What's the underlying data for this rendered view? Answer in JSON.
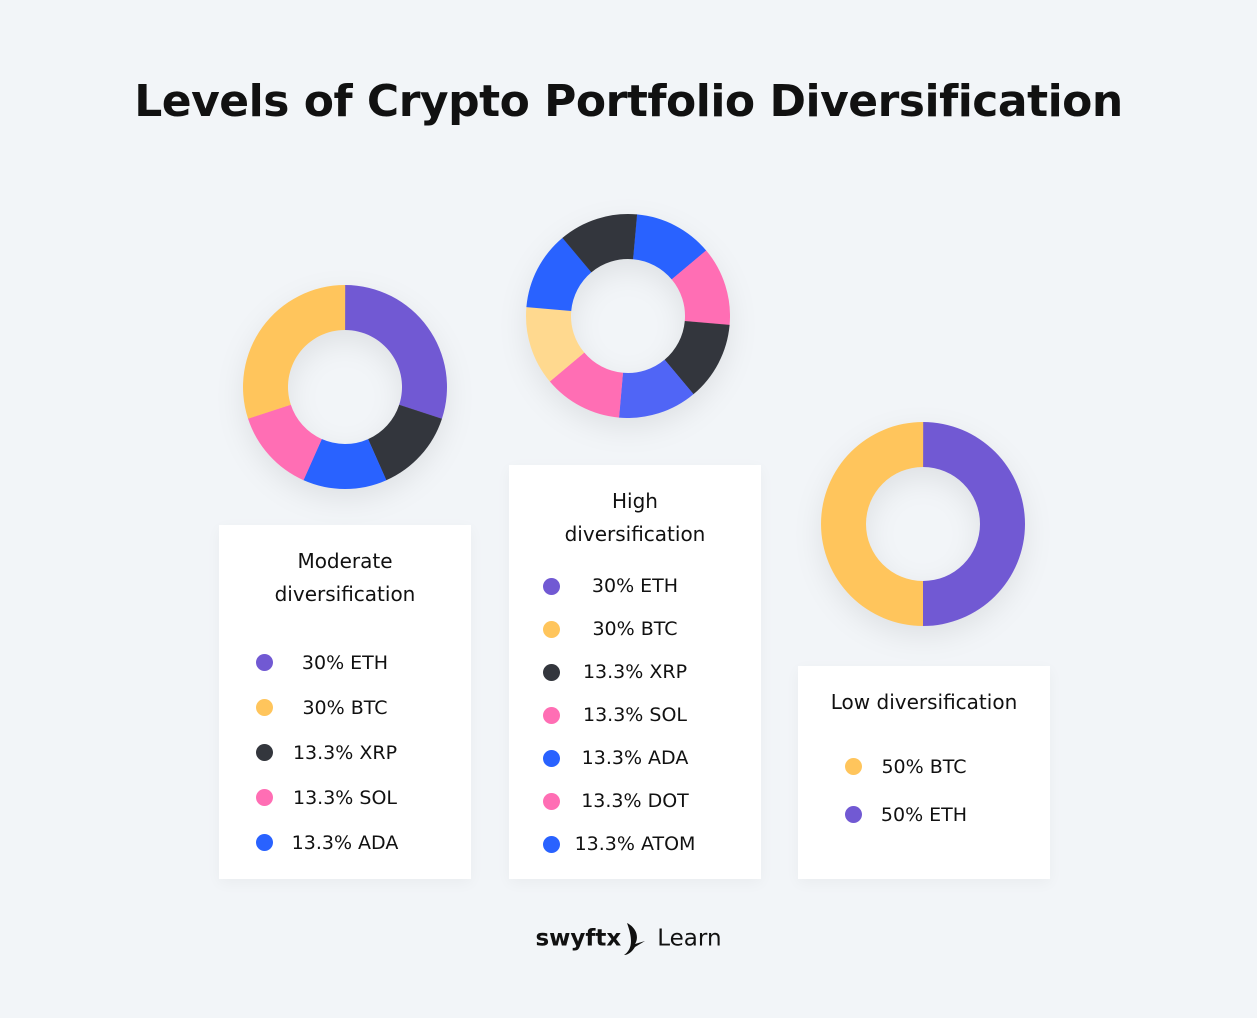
{
  "title": "Levels of Crypto Portfolio Diversification",
  "colors": {
    "ETH": "#7159d3",
    "BTC": "#ffc55c",
    "XRP": "#33363d",
    "SOL": "#ff6eb4",
    "ADA": "#2962ff",
    "DOT": "#ff6eb4",
    "ATOM": "#2962ff",
    "periwinkle": "#5065f6",
    "lightyellow": "#ffd98f"
  },
  "chart_data": [
    {
      "type": "pie",
      "subtype": "donut",
      "title": "Moderate diversification",
      "title_lines": [
        "Moderate",
        "diversification"
      ],
      "slices": [
        {
          "label": "30% ETH",
          "asset": "ETH",
          "value": 30,
          "color": "#7159d3"
        },
        {
          "label": "30% BTC",
          "asset": "BTC",
          "value": 30,
          "color": "#ffc55c"
        },
        {
          "label": "13.3% XRP",
          "asset": "XRP",
          "value": 13.3,
          "color": "#33363d"
        },
        {
          "label": "13.3% SOL",
          "asset": "SOL",
          "value": 13.3,
          "color": "#ff6eb4"
        },
        {
          "label": "13.3% ADA",
          "asset": "ADA",
          "value": 13.3,
          "color": "#2962ff"
        }
      ],
      "ring_order": [
        "ETH",
        "XRP",
        "ADA",
        "SOL",
        "BTC"
      ]
    },
    {
      "type": "pie",
      "subtype": "donut",
      "title": "High diversification",
      "title_lines": [
        "High",
        "diversification"
      ],
      "slices": [
        {
          "label": "30% ETH",
          "asset": "ETH",
          "value": 30,
          "color": "#7159d3"
        },
        {
          "label": "30% BTC",
          "asset": "BTC",
          "value": 30,
          "color": "#ffc55c"
        },
        {
          "label": "13.3% XRP",
          "asset": "XRP",
          "value": 13.3,
          "color": "#33363d"
        },
        {
          "label": "13.3% SOL",
          "asset": "SOL",
          "value": 13.3,
          "color": "#ff6eb4"
        },
        {
          "label": "13.3% ADA",
          "asset": "ADA",
          "value": 13.3,
          "color": "#2962ff"
        },
        {
          "label": "13.3% DOT",
          "asset": "DOT",
          "value": 13.3,
          "color": "#ff6eb4"
        },
        {
          "label": "13.3% ATOM",
          "asset": "ATOM",
          "value": 13.3,
          "color": "#2962ff"
        }
      ],
      "ring_segments": [
        {
          "value": 1,
          "color": "#2962ff"
        },
        {
          "value": 1,
          "color": "#ff6eb4"
        },
        {
          "value": 1,
          "color": "#33363d"
        },
        {
          "value": 1,
          "color": "#5065f6"
        },
        {
          "value": 1,
          "color": "#ff6eb4"
        },
        {
          "value": 1,
          "color": "#ffd98f"
        },
        {
          "value": 1,
          "color": "#2962ff"
        },
        {
          "value": 1,
          "color": "#33363d"
        }
      ]
    },
    {
      "type": "pie",
      "subtype": "donut",
      "title": "Low diversification",
      "title_lines": [
        "Low diversification"
      ],
      "slices": [
        {
          "label": "50% BTC",
          "asset": "BTC",
          "value": 50,
          "color": "#ffc55c"
        },
        {
          "label": "50% ETH",
          "asset": "ETH",
          "value": 50,
          "color": "#7159d3"
        }
      ],
      "ring_order": [
        "ETH",
        "BTC"
      ]
    }
  ],
  "footer": {
    "brand": "swyftx",
    "section": "Learn",
    "logo_icon": "swallow-bird-icon"
  }
}
